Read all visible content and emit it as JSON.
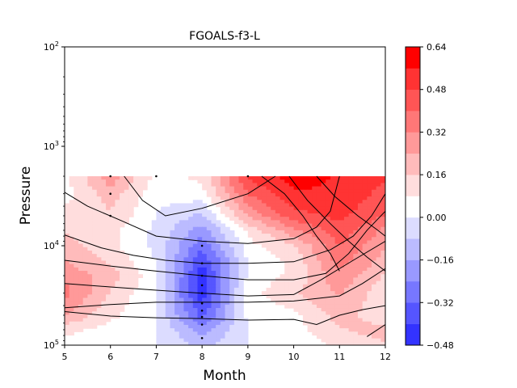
{
  "chart_data": {
    "type": "contour",
    "title": "FGOALS-f3-L",
    "xlabel": "Month",
    "ylabel": "Pressure",
    "x_ticks": [
      "5",
      "6",
      "7",
      "8",
      "9",
      "10",
      "11",
      "12"
    ],
    "xlim": [
      5,
      12
    ],
    "y_scale": "log",
    "y_inverted": true,
    "ylim": [
      100000,
      100
    ],
    "y_ticks": [
      {
        "value": 100,
        "base": "10",
        "exp": "2"
      },
      {
        "value": 1000,
        "base": "10",
        "exp": "3"
      },
      {
        "value": 10000,
        "base": "10",
        "exp": "4"
      },
      {
        "value": 100000,
        "base": "10",
        "exp": "5"
      }
    ],
    "colorbar": {
      "ticks": [
        "0.64",
        "0.48",
        "0.32",
        "0.16",
        "0.00",
        "−0.16",
        "−0.32",
        "−0.48"
      ],
      "levels": [
        -0.48,
        -0.4,
        -0.32,
        -0.24,
        -0.16,
        -0.08,
        0.0,
        0.08,
        0.16,
        0.24,
        0.32,
        0.4,
        0.48,
        0.56,
        0.64
      ],
      "colors": [
        "#3333ff",
        "#5555ff",
        "#7777ff",
        "#9999ff",
        "#bbbbff",
        "#dcdcff",
        "#ffffff",
        "#ffdddd",
        "#ffbbbb",
        "#ff9999",
        "#ff7777",
        "#ff5555",
        "#ff3333",
        "#ff0000"
      ]
    },
    "field": {
      "months": [
        5,
        6,
        7,
        8,
        9,
        10,
        11,
        12
      ],
      "pressure_levels": [
        2000,
        3000,
        5000,
        7000,
        10000,
        15000,
        20000,
        30000,
        50000,
        70000,
        100000
      ],
      "values": [
        [
          0.05,
          0.3,
          0.05,
          0.1,
          0.5,
          0.6,
          0.55,
          0.5
        ],
        [
          0.05,
          0.2,
          0.02,
          0.05,
          0.4,
          0.55,
          0.55,
          0.45
        ],
        [
          0.1,
          0.15,
          0.0,
          -0.1,
          0.25,
          0.45,
          0.5,
          0.4
        ],
        [
          0.15,
          0.1,
          -0.02,
          -0.2,
          0.1,
          0.3,
          0.45,
          0.3
        ],
        [
          0.2,
          0.1,
          -0.02,
          -0.3,
          0.05,
          0.15,
          0.4,
          0.25
        ],
        [
          0.25,
          0.15,
          0.0,
          -0.4,
          0.0,
          0.1,
          0.35,
          0.2
        ],
        [
          0.3,
          0.2,
          0.02,
          -0.45,
          0.02,
          0.1,
          0.3,
          0.15
        ],
        [
          0.35,
          0.15,
          0.0,
          -0.45,
          0.05,
          0.15,
          0.25,
          0.1
        ],
        [
          0.25,
          0.1,
          0.0,
          -0.35,
          0.02,
          0.05,
          0.2,
          0.1
        ],
        [
          0.1,
          0.05,
          0.0,
          -0.2,
          0.0,
          0.05,
          0.15,
          0.2
        ],
        [
          0.05,
          0.02,
          0.0,
          -0.1,
          0.0,
          0.02,
          0.1,
          0.15
        ]
      ]
    },
    "contour_lines": [
      {
        "points": [
          [
            6.3,
            2000
          ],
          [
            6.7,
            3500
          ],
          [
            7.2,
            5000
          ],
          [
            8.0,
            4200
          ],
          [
            9.0,
            3000
          ],
          [
            9.6,
            2000
          ]
        ]
      },
      {
        "points": [
          [
            5.0,
            2900
          ],
          [
            5.5,
            4000
          ],
          [
            6.2,
            5500
          ],
          [
            7.0,
            8000
          ],
          [
            8.0,
            9000
          ],
          [
            9.0,
            9500
          ],
          [
            10.0,
            8500
          ],
          [
            10.5,
            6500
          ],
          [
            10.8,
            4500
          ],
          [
            11.0,
            2000
          ]
        ]
      },
      {
        "points": [
          [
            5.0,
            7800
          ],
          [
            5.8,
            10500
          ],
          [
            6.5,
            12500
          ],
          [
            7.2,
            14000
          ],
          [
            8.0,
            15000
          ],
          [
            9.0,
            15000
          ],
          [
            10.0,
            14500
          ],
          [
            10.8,
            11000
          ],
          [
            11.3,
            8000
          ],
          [
            11.7,
            5000
          ],
          [
            12.0,
            3000
          ]
        ]
      },
      {
        "points": [
          [
            5.0,
            14000
          ],
          [
            6.0,
            16000
          ],
          [
            7.0,
            18000
          ],
          [
            8.0,
            20000
          ],
          [
            9.0,
            22000
          ],
          [
            10.0,
            22000
          ],
          [
            10.7,
            19000
          ],
          [
            11.2,
            12000
          ],
          [
            11.6,
            7000
          ],
          [
            12.0,
            4500
          ]
        ]
      },
      {
        "points": [
          [
            5.0,
            24000
          ],
          [
            6.0,
            26000
          ],
          [
            7.0,
            28000
          ],
          [
            8.0,
            30000
          ],
          [
            9.0,
            32000
          ],
          [
            10.0,
            31000
          ],
          [
            10.6,
            22000
          ],
          [
            11.3,
            14000
          ],
          [
            12.0,
            9000
          ]
        ]
      },
      {
        "points": [
          [
            5.0,
            42000
          ],
          [
            6.0,
            39000
          ],
          [
            7.0,
            37000
          ],
          [
            8.0,
            37000
          ],
          [
            9.0,
            37000
          ],
          [
            10.0,
            36000
          ],
          [
            11.0,
            32000
          ],
          [
            11.5,
            24000
          ],
          [
            12.0,
            17000
          ]
        ]
      },
      {
        "points": [
          [
            5.0,
            46000
          ],
          [
            6.0,
            51000
          ],
          [
            7.0,
            53000
          ],
          [
            8.0,
            54000
          ],
          [
            9.0,
            56000
          ],
          [
            10.0,
            55000
          ],
          [
            10.5,
            62000
          ],
          [
            11.0,
            50000
          ],
          [
            11.5,
            44000
          ],
          [
            12.0,
            40000
          ]
        ]
      },
      {
        "points": [
          [
            11.6,
            82000
          ],
          [
            12.0,
            62000
          ]
        ]
      },
      {
        "points": [
          [
            9.3,
            2000
          ],
          [
            9.8,
            3000
          ],
          [
            10.2,
            5000
          ],
          [
            10.5,
            8000
          ],
          [
            10.8,
            12000
          ],
          [
            11.0,
            18000
          ]
        ]
      },
      {
        "points": [
          [
            9.9,
            2000
          ],
          [
            10.3,
            3500
          ],
          [
            10.8,
            6000
          ],
          [
            11.2,
            9000
          ],
          [
            11.6,
            13000
          ],
          [
            12.0,
            18000
          ]
        ]
      },
      {
        "points": [
          [
            10.5,
            2000
          ],
          [
            10.9,
            3200
          ],
          [
            11.4,
            5000
          ],
          [
            11.8,
            6800
          ],
          [
            12.0,
            8000
          ]
        ]
      }
    ],
    "stipple_points": [
      [
        6,
        2000
      ],
      [
        6,
        3000
      ],
      [
        6,
        5000
      ],
      [
        7,
        2000
      ],
      [
        9,
        2000
      ],
      [
        8,
        10000
      ],
      [
        8,
        15000
      ],
      [
        8,
        20000
      ],
      [
        8,
        25000
      ],
      [
        8,
        30000
      ],
      [
        8,
        38000
      ],
      [
        8,
        45000
      ],
      [
        8,
        52000
      ],
      [
        8,
        62000
      ],
      [
        8,
        85000
      ]
    ]
  }
}
